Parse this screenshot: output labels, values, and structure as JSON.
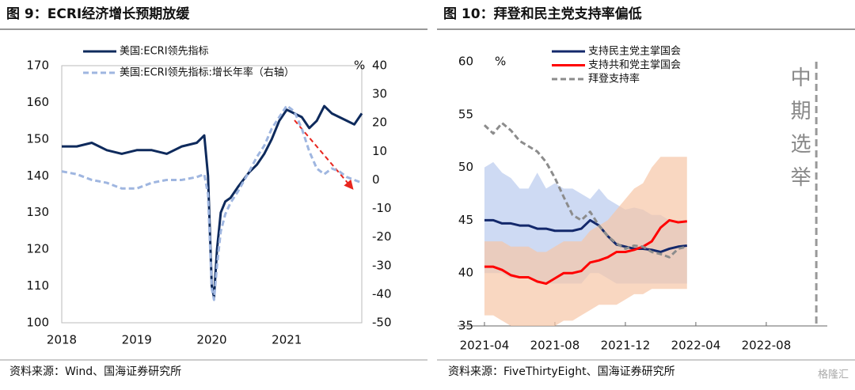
{
  "chart_data": [
    {
      "type": "line",
      "title": "图 9：ECRI经济增长预期放缓",
      "source": "资料来源：Wind、国海证券研究所",
      "y2_label": "%",
      "x": [
        2018,
        2018.2,
        2018.4,
        2018.6,
        2018.8,
        2019,
        2019.2,
        2019.4,
        2019.6,
        2019.8,
        2019.9,
        2019.95,
        2020,
        2020.03,
        2020.07,
        2020.12,
        2020.18,
        2020.25,
        2020.35,
        2020.5,
        2020.6,
        2020.7,
        2020.8,
        2020.9,
        2021,
        2021.1,
        2021.2,
        2021.3,
        2021.4,
        2021.5,
        2021.6,
        2021.7,
        2021.8,
        2021.9,
        2022
      ],
      "xlim": [
        2018,
        2022
      ],
      "xticks": [
        2018,
        2019,
        2020,
        2021
      ],
      "ylim": [
        100,
        170
      ],
      "yticks": [
        100,
        110,
        120,
        130,
        140,
        150,
        160,
        170
      ],
      "y2lim": [
        -50,
        40
      ],
      "y2ticks": [
        -50,
        -40,
        -30,
        -20,
        -10,
        0,
        10,
        20,
        30,
        40
      ],
      "series": [
        {
          "name": "美国:ECRI领先指标",
          "color": "#0e2a5c",
          "values": [
            148,
            148,
            149,
            147,
            146,
            147,
            147,
            146,
            148,
            149,
            151,
            140,
            110,
            107,
            120,
            130,
            133,
            134,
            137,
            141,
            143,
            146,
            150,
            155,
            158,
            157,
            156,
            153,
            155,
            159,
            157,
            156,
            155,
            154,
            157
          ]
        },
        {
          "name": "美国:ECRI领先指标:增长年率（右轴）",
          "color": "#9fb6e0",
          "dash": true,
          "axis": "y2",
          "values": [
            3,
            2,
            0,
            -1,
            -3,
            -3,
            -1,
            0,
            0,
            1,
            2,
            -5,
            -38,
            -42,
            -30,
            -18,
            -12,
            -8,
            -4,
            3,
            8,
            12,
            18,
            22,
            26,
            24,
            18,
            10,
            4,
            2,
            4,
            3,
            1,
            0,
            -1
          ]
        }
      ]
    },
    {
      "type": "line",
      "title": "图 10：拜登和民主党支持率偏低",
      "source": "资料来源：FiveThirtyEight、国海证券研究所",
      "y_label": "%",
      "x": [
        2021.25,
        2021.2917,
        2021.3333,
        2021.375,
        2021.4167,
        2021.4583,
        2021.5,
        2021.5417,
        2021.5833,
        2021.625,
        2021.6667,
        2021.7083,
        2021.75,
        2021.7917,
        2021.8333,
        2021.875,
        2021.9167,
        2021.9583,
        2022.0,
        2022.0417,
        2022.0833,
        2022.125,
        2022.1667,
        2022.2083
      ],
      "xlim": [
        2021.224,
        2022.872
      ],
      "xticks": [
        {
          "value": 2021.25,
          "label": "2021-04"
        },
        {
          "value": 2021.5833,
          "label": "2021-08"
        },
        {
          "value": 2021.9167,
          "label": "2021-12"
        },
        {
          "value": 2022.25,
          "label": "2022-04"
        },
        {
          "value": 2022.5833,
          "label": "2022-08"
        }
      ],
      "ylim": [
        35,
        60
      ],
      "yticks": [
        35,
        40,
        45,
        50,
        55,
        60
      ],
      "series": [
        {
          "name": "支持民主党主掌国会",
          "color": "#13286b",
          "band_color": "#b9cbee",
          "values": [
            45,
            45,
            44.7,
            44.7,
            44.5,
            44.5,
            44.2,
            44.2,
            44,
            44,
            44,
            44.2,
            45,
            44.5,
            43.5,
            42.7,
            42.5,
            42.3,
            42.3,
            42.2,
            42,
            42.3,
            42.5,
            42.6
          ],
          "upper": [
            50,
            50.5,
            49.5,
            49,
            48,
            48,
            49.5,
            48,
            48.5,
            48,
            48,
            47.5,
            47,
            48,
            47,
            46.5,
            46,
            46.2,
            46,
            45.5,
            45.5,
            45,
            45,
            45
          ],
          "lower": [
            40,
            40,
            40,
            39.5,
            39.5,
            39.5,
            39,
            39,
            39,
            39,
            39,
            39,
            40,
            40,
            39.5,
            39,
            39,
            39,
            39,
            39,
            39,
            39,
            39,
            39
          ]
        },
        {
          "name": "支持共和党主掌国会",
          "color": "#ff0000",
          "band_color": "#f7c6a6",
          "values": [
            40.6,
            40.6,
            40.3,
            39.8,
            39.6,
            39.6,
            39.2,
            39,
            39.5,
            40,
            40,
            40.2,
            41,
            41.2,
            41.5,
            42,
            42,
            42.2,
            42.5,
            43,
            44.3,
            45,
            44.8,
            44.9
          ],
          "upper": [
            43,
            43,
            43,
            42.5,
            42.5,
            42.5,
            42,
            42,
            42.5,
            43,
            43,
            43,
            44,
            44.5,
            45,
            46,
            47,
            48,
            48.5,
            50,
            51,
            51,
            51,
            51
          ],
          "lower": [
            36,
            36,
            35.5,
            35,
            35,
            35,
            35,
            35,
            35,
            35.5,
            35.5,
            36,
            36.5,
            37,
            37,
            37,
            37.5,
            38,
            38,
            38.5,
            38.5,
            38.5,
            38.5,
            38.5
          ]
        },
        {
          "name": "拜登支持率",
          "color": "#8c8c8c",
          "dash": true,
          "values": [
            54,
            53.2,
            54.2,
            53.5,
            52.5,
            52,
            51.5,
            50.5,
            49,
            47.2,
            45.5,
            45,
            45.8,
            44.5,
            43.5,
            42.8,
            42.3,
            42.6,
            42.5,
            42,
            41.8,
            41.5,
            42.3,
            42.5
          ]
        }
      ],
      "annotation": {
        "x": 2022.82,
        "label": "中期选举"
      }
    }
  ],
  "watermark": "格隆汇"
}
